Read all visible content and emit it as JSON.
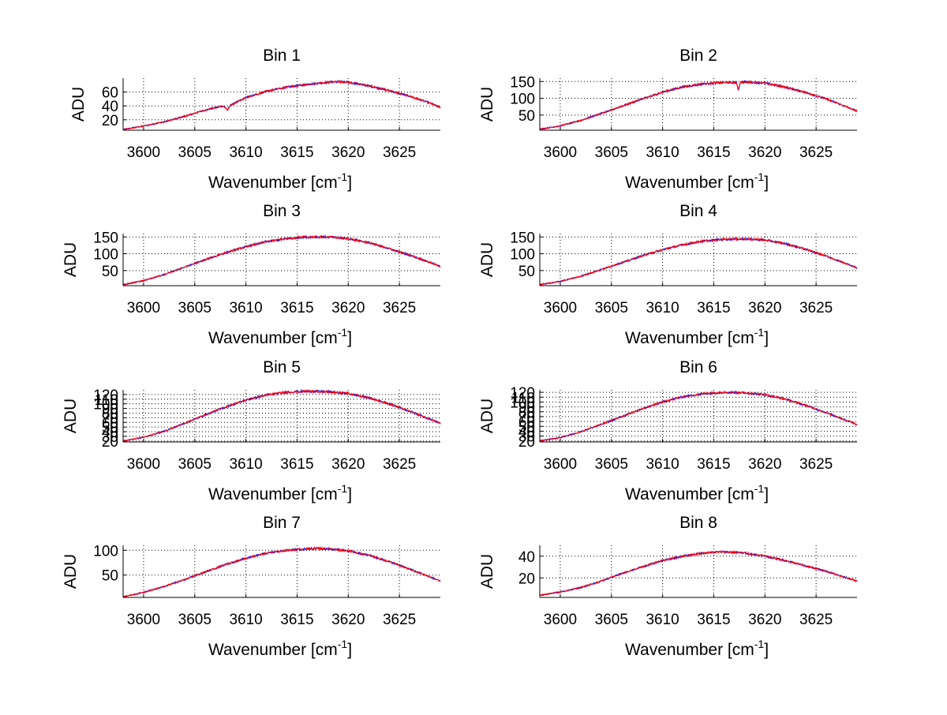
{
  "figure": {
    "background": "#ffffff"
  },
  "chart_data": [
    {
      "type": "line",
      "title": "Bin 1",
      "xlabel": "Wavenumber [cm-1]",
      "ylabel": "ADU",
      "xlim": [
        3598,
        3629
      ],
      "ylim": [
        5,
        80
      ],
      "xticks": [
        "3600",
        "3605",
        "3610",
        "3615",
        "3620",
        "3625"
      ],
      "yticks": [
        "20",
        "40",
        "60"
      ],
      "grid": true,
      "series": [
        {
          "color": "#0000ff",
          "x": [
            3598,
            3600,
            3602,
            3604,
            3606,
            3607.8,
            3608.2,
            3608.5,
            3610,
            3612,
            3614,
            3616,
            3618,
            3619,
            3620,
            3622,
            3624,
            3626,
            3628,
            3629
          ],
          "values": [
            6,
            11,
            17,
            25,
            34,
            40,
            34,
            41,
            52,
            61,
            67,
            71,
            74,
            75,
            74,
            69,
            62,
            54,
            44,
            38
          ]
        },
        {
          "color": "#ff0000",
          "x": [
            3598,
            3600,
            3602,
            3604,
            3606,
            3607.8,
            3608.2,
            3608.5,
            3610,
            3612,
            3614,
            3616,
            3618,
            3619,
            3620,
            3622,
            3624,
            3626,
            3628,
            3629
          ],
          "values": [
            6,
            11,
            17,
            25,
            34,
            40,
            34,
            41,
            52,
            61,
            67,
            71,
            74,
            75,
            74,
            69,
            62,
            54,
            44,
            38
          ]
        }
      ]
    },
    {
      "type": "line",
      "title": "Bin 2",
      "xlabel": "Wavenumber [cm-1]",
      "ylabel": "ADU",
      "xlim": [
        3598,
        3629
      ],
      "ylim": [
        5,
        160
      ],
      "xticks": [
        "3600",
        "3605",
        "3610",
        "3615",
        "3620",
        "3625"
      ],
      "yticks": [
        "50",
        "100",
        "150"
      ],
      "grid": true,
      "series": [
        {
          "color": "#0000ff",
          "x": [
            3598,
            3600,
            3602,
            3604,
            3606,
            3608,
            3610,
            3612,
            3614,
            3616,
            3617.2,
            3617.4,
            3617.6,
            3618,
            3620,
            3622,
            3624,
            3626,
            3628,
            3629
          ],
          "values": [
            8,
            18,
            34,
            55,
            76,
            98,
            118,
            134,
            143,
            147,
            147,
            125,
            148,
            149,
            145,
            133,
            117,
            98,
            74,
            62
          ]
        },
        {
          "color": "#ff0000",
          "x": [
            3598,
            3600,
            3602,
            3604,
            3606,
            3608,
            3610,
            3612,
            3614,
            3616,
            3617.2,
            3617.4,
            3617.6,
            3618,
            3620,
            3622,
            3624,
            3626,
            3628,
            3629
          ],
          "values": [
            8,
            18,
            34,
            55,
            76,
            98,
            118,
            134,
            143,
            147,
            147,
            125,
            148,
            149,
            145,
            133,
            117,
            98,
            74,
            62
          ]
        }
      ]
    },
    {
      "type": "line",
      "title": "Bin 3",
      "xlabel": "Wavenumber [cm-1]",
      "ylabel": "ADU",
      "xlim": [
        3598,
        3629
      ],
      "ylim": [
        5,
        160
      ],
      "xticks": [
        "3600",
        "3605",
        "3610",
        "3615",
        "3620",
        "3625"
      ],
      "yticks": [
        "50",
        "100",
        "150"
      ],
      "grid": true,
      "series": [
        {
          "color": "#0000ff",
          "x": [
            3598,
            3600,
            3602,
            3604,
            3606,
            3608,
            3610,
            3612,
            3614,
            3616,
            3618,
            3620,
            3622,
            3624,
            3626,
            3628,
            3629
          ],
          "values": [
            8,
            20,
            38,
            60,
            82,
            103,
            121,
            136,
            145,
            150,
            150,
            145,
            133,
            115,
            96,
            74,
            62
          ]
        },
        {
          "color": "#ff0000",
          "x": [
            3598,
            3600,
            3602,
            3604,
            3606,
            3608,
            3610,
            3612,
            3614,
            3616,
            3618,
            3620,
            3622,
            3624,
            3626,
            3628,
            3629
          ],
          "values": [
            8,
            20,
            38,
            60,
            82,
            103,
            121,
            136,
            145,
            150,
            150,
            145,
            133,
            115,
            96,
            74,
            62
          ]
        }
      ]
    },
    {
      "type": "line",
      "title": "Bin 4",
      "xlabel": "Wavenumber [cm-1]",
      "ylabel": "ADU",
      "xlim": [
        3598,
        3629
      ],
      "ylim": [
        5,
        160
      ],
      "xticks": [
        "3600",
        "3605",
        "3610",
        "3615",
        "3620",
        "3625"
      ],
      "yticks": [
        "50",
        "100",
        "150"
      ],
      "grid": true,
      "series": [
        {
          "color": "#0000ff",
          "x": [
            3598,
            3600,
            3602,
            3604,
            3606,
            3608,
            3610,
            3612,
            3614,
            3616,
            3618,
            3620,
            3622,
            3624,
            3626,
            3628,
            3629
          ],
          "values": [
            8,
            18,
            33,
            53,
            73,
            94,
            112,
            127,
            138,
            143,
            144,
            141,
            130,
            113,
            93,
            70,
            58
          ]
        },
        {
          "color": "#ff0000",
          "x": [
            3598,
            3600,
            3602,
            3604,
            3606,
            3608,
            3610,
            3612,
            3614,
            3616,
            3618,
            3620,
            3622,
            3624,
            3626,
            3628,
            3629
          ],
          "values": [
            8,
            18,
            33,
            53,
            73,
            94,
            112,
            127,
            138,
            143,
            144,
            141,
            130,
            113,
            93,
            70,
            58
          ]
        }
      ]
    },
    {
      "type": "line",
      "title": "Bin 5",
      "xlabel": "Wavenumber [cm-1]",
      "ylabel": "ADU",
      "xlim": [
        3598,
        3629
      ],
      "ylim": [
        18,
        130
      ],
      "xticks": [
        "3600",
        "3605",
        "3610",
        "3615",
        "3620",
        "3625"
      ],
      "yticks": [
        "20",
        "30",
        "40",
        "50",
        "60",
        "70",
        "80",
        "90",
        "100",
        "110",
        "120"
      ],
      "grid": true,
      "series": [
        {
          "color": "#0000ff",
          "x": [
            3598,
            3600,
            3602,
            3604,
            3606,
            3608,
            3610,
            3612,
            3614,
            3616,
            3618,
            3620,
            3622,
            3624,
            3626,
            3628,
            3629
          ],
          "values": [
            20,
            28,
            41,
            58,
            76,
            93,
            108,
            119,
            125,
            127,
            126,
            122,
            113,
            100,
            84,
            67,
            58
          ]
        },
        {
          "color": "#ff0000",
          "x": [
            3598,
            3600,
            3602,
            3604,
            3606,
            3608,
            3610,
            3612,
            3614,
            3616,
            3618,
            3620,
            3622,
            3624,
            3626,
            3628,
            3629
          ],
          "values": [
            20,
            28,
            41,
            58,
            76,
            93,
            108,
            119,
            125,
            127,
            126,
            122,
            113,
            100,
            84,
            67,
            58
          ]
        }
      ]
    },
    {
      "type": "line",
      "title": "Bin 6",
      "xlabel": "Wavenumber [cm-1]",
      "ylabel": "ADU",
      "xlim": [
        3598,
        3629
      ],
      "ylim": [
        18,
        125
      ],
      "xticks": [
        "3600",
        "3605",
        "3610",
        "3615",
        "3620",
        "3625"
      ],
      "yticks": [
        "20",
        "30",
        "40",
        "50",
        "60",
        "70",
        "80",
        "90",
        "100",
        "110",
        "120"
      ],
      "grid": true,
      "series": [
        {
          "color": "#0000ff",
          "x": [
            3598,
            3600,
            3602,
            3604,
            3606,
            3608,
            3610,
            3612,
            3614,
            3616,
            3618,
            3620,
            3622,
            3624,
            3626,
            3628,
            3629
          ],
          "values": [
            20,
            27,
            39,
            54,
            70,
            86,
            100,
            111,
            117,
            120,
            119,
            115,
            106,
            93,
            78,
            62,
            54
          ]
        },
        {
          "color": "#ff0000",
          "x": [
            3598,
            3600,
            3602,
            3604,
            3606,
            3608,
            3610,
            3612,
            3614,
            3616,
            3618,
            3620,
            3622,
            3624,
            3626,
            3628,
            3629
          ],
          "values": [
            20,
            27,
            39,
            54,
            70,
            86,
            100,
            111,
            117,
            120,
            119,
            115,
            106,
            93,
            78,
            62,
            54
          ]
        }
      ]
    },
    {
      "type": "line",
      "title": "Bin 7",
      "xlabel": "Wavenumber [cm-1]",
      "ylabel": "ADU",
      "xlim": [
        3598,
        3629
      ],
      "ylim": [
        5,
        110
      ],
      "xticks": [
        "3600",
        "3605",
        "3610",
        "3615",
        "3620",
        "3625"
      ],
      "yticks": [
        "50",
        "100"
      ],
      "grid": true,
      "series": [
        {
          "color": "#0000ff",
          "x": [
            3598,
            3600,
            3602,
            3604,
            3606,
            3608,
            3610,
            3612,
            3614,
            3616,
            3617,
            3618,
            3620,
            3622,
            3624,
            3626,
            3628,
            3629
          ],
          "values": [
            6,
            15,
            27,
            41,
            56,
            71,
            84,
            94,
            100,
            103,
            104,
            103,
            99,
            90,
            77,
            62,
            46,
            38
          ]
        },
        {
          "color": "#ff0000",
          "x": [
            3598,
            3600,
            3602,
            3604,
            3606,
            3608,
            3610,
            3612,
            3614,
            3616,
            3617,
            3618,
            3620,
            3622,
            3624,
            3626,
            3628,
            3629
          ],
          "values": [
            6,
            15,
            27,
            41,
            56,
            71,
            84,
            94,
            100,
            103,
            104,
            103,
            99,
            90,
            77,
            62,
            46,
            38
          ]
        }
      ]
    },
    {
      "type": "line",
      "title": "Bin 8",
      "xlabel": "Wavenumber [cm-1]",
      "ylabel": "ADU",
      "xlim": [
        3598,
        3629
      ],
      "ylim": [
        2,
        50
      ],
      "xticks": [
        "3600",
        "3605",
        "3610",
        "3615",
        "3620",
        "3625"
      ],
      "yticks": [
        "20",
        "40"
      ],
      "grid": true,
      "series": [
        {
          "color": "#0000ff",
          "x": [
            3598,
            3600,
            3602,
            3604,
            3606,
            3608,
            3610,
            3612,
            3614,
            3616,
            3618,
            3620,
            3622,
            3624,
            3626,
            3628,
            3629
          ],
          "values": [
            4,
            7,
            11,
            17,
            24,
            30,
            36,
            40,
            43,
            44,
            43,
            40,
            36,
            31,
            26,
            20,
            17
          ]
        },
        {
          "color": "#ff0000",
          "x": [
            3598,
            3600,
            3602,
            3604,
            3606,
            3608,
            3610,
            3612,
            3614,
            3616,
            3618,
            3620,
            3622,
            3624,
            3626,
            3628,
            3629
          ],
          "values": [
            4,
            7,
            11,
            17,
            24,
            30,
            36,
            40,
            43,
            44,
            43,
            40,
            36,
            31,
            26,
            20,
            17
          ]
        }
      ]
    }
  ]
}
